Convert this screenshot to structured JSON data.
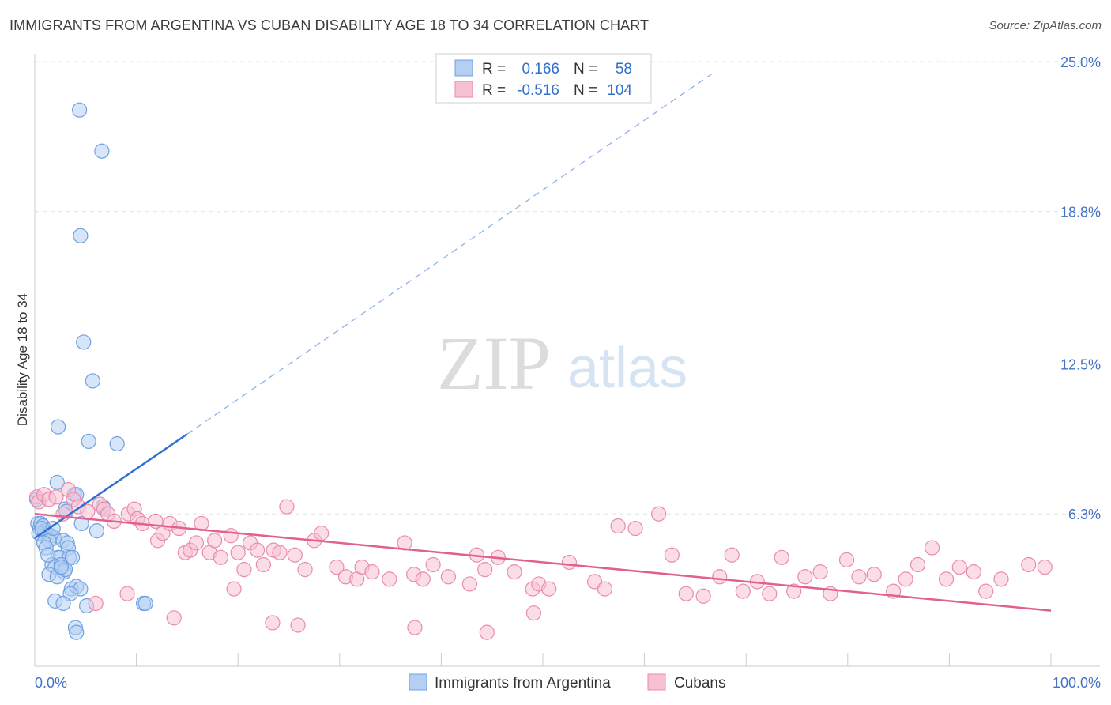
{
  "title": "IMMIGRANTS FROM ARGENTINA VS CUBAN DISABILITY AGE 18 TO 34 CORRELATION CHART",
  "source": "Source: ZipAtlas.com",
  "watermark": {
    "zip": "ZIP",
    "atlas": "atlas"
  },
  "chart_data": {
    "type": "scatter",
    "title": "IMMIGRANTS FROM ARGENTINA VS CUBAN DISABILITY AGE 18 TO 34 CORRELATION CHART",
    "xlabel": "",
    "ylabel": "Disability Age 18 to 34",
    "xlim": [
      0,
      100
    ],
    "ylim": [
      0,
      25
    ],
    "x_tick_labels": [
      "0.0%",
      "100.0%"
    ],
    "y_ticks": [
      6.3,
      12.5,
      18.8,
      25.0
    ],
    "y_tick_labels": [
      "6.3%",
      "12.5%",
      "18.8%",
      "25.0%"
    ],
    "grid": true,
    "legend_placement": "top-center",
    "legend": [
      {
        "r_label": "R =",
        "r_value": "0.166",
        "n_label": "N =",
        "n_value": "58"
      },
      {
        "r_label": "R =",
        "r_value": "-0.516",
        "n_label": "N =",
        "n_value": "104"
      }
    ],
    "series": [
      {
        "name": "Immigrants from Argentina",
        "color": "#6fa0e0",
        "fill": "#b4cff2",
        "trend": {
          "x0": 0,
          "y0": 5.3,
          "x1": 15,
          "y1": 9.6,
          "dashed_to_x": 67,
          "dashed_to_y": 24.6,
          "color": "#2f6fce"
        },
        "points": [
          [
            4.4,
            23.0
          ],
          [
            6.6,
            21.3
          ],
          [
            4.5,
            17.8
          ],
          [
            4.8,
            13.4
          ],
          [
            5.7,
            11.8
          ],
          [
            2.3,
            9.9
          ],
          [
            5.3,
            9.3
          ],
          [
            8.1,
            9.2
          ],
          [
            2.2,
            7.6
          ],
          [
            3.9,
            7.1
          ],
          [
            4.1,
            7.1
          ],
          [
            3.0,
            6.5
          ],
          [
            3.1,
            6.4
          ],
          [
            6.7,
            6.6
          ],
          [
            4.6,
            5.9
          ],
          [
            6.1,
            5.6
          ],
          [
            0.3,
            5.9
          ],
          [
            0.5,
            5.7
          ],
          [
            0.6,
            5.9
          ],
          [
            0.8,
            5.8
          ],
          [
            1.0,
            5.6
          ],
          [
            1.2,
            5.5
          ],
          [
            0.4,
            5.5
          ],
          [
            1.6,
            5.4
          ],
          [
            1.9,
            5.3
          ],
          [
            1.4,
            5.2
          ],
          [
            2.8,
            5.2
          ],
          [
            3.2,
            5.1
          ],
          [
            0.9,
            5.1
          ],
          [
            1.1,
            4.9
          ],
          [
            3.3,
            4.9
          ],
          [
            2.3,
            4.5
          ],
          [
            2.5,
            4.5
          ],
          [
            3.4,
            4.5
          ],
          [
            1.7,
            4.2
          ],
          [
            2.0,
            4.1
          ],
          [
            2.6,
            4.2
          ],
          [
            2.9,
            3.9
          ],
          [
            1.4,
            3.8
          ],
          [
            3.6,
            3.2
          ],
          [
            4.1,
            3.3
          ],
          [
            4.5,
            3.2
          ],
          [
            3.5,
            3.0
          ],
          [
            2.0,
            2.7
          ],
          [
            2.8,
            2.6
          ],
          [
            5.1,
            2.5
          ],
          [
            10.7,
            2.6
          ],
          [
            10.9,
            2.6
          ],
          [
            4.0,
            1.6
          ],
          [
            4.1,
            1.4
          ],
          [
            0.2,
            6.9
          ],
          [
            0.7,
            5.7
          ],
          [
            1.3,
            4.6
          ],
          [
            1.8,
            5.7
          ],
          [
            2.2,
            3.7
          ],
          [
            3.0,
            4.0
          ],
          [
            2.6,
            4.1
          ],
          [
            3.7,
            4.5
          ]
        ]
      },
      {
        "name": "Cubans",
        "color": "#e98bab",
        "fill": "#f7c1d3",
        "trend": {
          "x0": 0,
          "y0": 6.3,
          "x1": 100,
          "y1": 2.3,
          "color": "#e0608e"
        },
        "points": [
          [
            0.2,
            7.0
          ],
          [
            0.4,
            6.8
          ],
          [
            0.9,
            7.1
          ],
          [
            1.4,
            6.9
          ],
          [
            2.1,
            7.0
          ],
          [
            3.3,
            7.3
          ],
          [
            3.8,
            6.9
          ],
          [
            4.3,
            6.6
          ],
          [
            5.2,
            6.4
          ],
          [
            6.4,
            6.7
          ],
          [
            6.8,
            6.5
          ],
          [
            7.2,
            6.3
          ],
          [
            7.8,
            6.0
          ],
          [
            9.2,
            6.3
          ],
          [
            9.8,
            6.5
          ],
          [
            10.1,
            6.1
          ],
          [
            10.6,
            5.9
          ],
          [
            11.9,
            6.0
          ],
          [
            12.1,
            5.2
          ],
          [
            12.6,
            5.5
          ],
          [
            13.3,
            5.9
          ],
          [
            14.2,
            5.7
          ],
          [
            14.8,
            4.7
          ],
          [
            15.3,
            4.8
          ],
          [
            15.9,
            5.1
          ],
          [
            16.4,
            5.9
          ],
          [
            17.2,
            4.7
          ],
          [
            17.7,
            5.2
          ],
          [
            18.3,
            4.5
          ],
          [
            19.3,
            5.4
          ],
          [
            20.0,
            4.7
          ],
          [
            20.6,
            4.0
          ],
          [
            21.2,
            5.1
          ],
          [
            21.9,
            4.8
          ],
          [
            22.5,
            4.2
          ],
          [
            23.5,
            4.8
          ],
          [
            24.1,
            4.7
          ],
          [
            24.8,
            6.6
          ],
          [
            25.6,
            4.6
          ],
          [
            26.6,
            4.0
          ],
          [
            27.5,
            5.2
          ],
          [
            28.2,
            5.5
          ],
          [
            29.7,
            4.1
          ],
          [
            30.6,
            3.7
          ],
          [
            31.7,
            3.6
          ],
          [
            32.2,
            4.1
          ],
          [
            33.2,
            3.9
          ],
          [
            34.9,
            3.6
          ],
          [
            36.4,
            5.1
          ],
          [
            37.3,
            3.8
          ],
          [
            38.2,
            3.6
          ],
          [
            39.2,
            4.2
          ],
          [
            40.7,
            3.7
          ],
          [
            42.8,
            3.4
          ],
          [
            43.5,
            4.6
          ],
          [
            44.3,
            4.0
          ],
          [
            45.6,
            4.5
          ],
          [
            47.2,
            3.9
          ],
          [
            49.0,
            3.2
          ],
          [
            49.6,
            3.4
          ],
          [
            50.6,
            3.2
          ],
          [
            52.6,
            4.3
          ],
          [
            55.1,
            3.5
          ],
          [
            56.1,
            3.2
          ],
          [
            57.4,
            5.8
          ],
          [
            59.1,
            5.7
          ],
          [
            61.4,
            6.3
          ],
          [
            62.7,
            4.6
          ],
          [
            64.1,
            3.0
          ],
          [
            65.8,
            2.9
          ],
          [
            67.4,
            3.7
          ],
          [
            68.6,
            4.6
          ],
          [
            69.7,
            3.1
          ],
          [
            71.1,
            3.5
          ],
          [
            72.3,
            3.0
          ],
          [
            73.5,
            4.5
          ],
          [
            74.7,
            3.1
          ],
          [
            75.8,
            3.7
          ],
          [
            77.3,
            3.9
          ],
          [
            78.3,
            3.0
          ],
          [
            79.9,
            4.4
          ],
          [
            81.1,
            3.7
          ],
          [
            82.6,
            3.8
          ],
          [
            84.5,
            3.1
          ],
          [
            85.7,
            3.6
          ],
          [
            86.9,
            4.2
          ],
          [
            88.3,
            4.9
          ],
          [
            89.7,
            3.6
          ],
          [
            91.0,
            4.1
          ],
          [
            92.4,
            3.9
          ],
          [
            93.6,
            3.1
          ],
          [
            95.1,
            3.6
          ],
          [
            97.8,
            4.2
          ],
          [
            99.4,
            4.1
          ],
          [
            2.8,
            6.3
          ],
          [
            6.0,
            2.6
          ],
          [
            9.1,
            3.0
          ],
          [
            13.7,
            2.0
          ],
          [
            19.6,
            3.2
          ],
          [
            23.4,
            1.8
          ],
          [
            25.9,
            1.7
          ],
          [
            37.4,
            1.6
          ],
          [
            44.5,
            1.4
          ],
          [
            49.1,
            2.2
          ]
        ]
      }
    ]
  },
  "bottom_legend": [
    "Immigrants from Argentina",
    "Cubans"
  ]
}
